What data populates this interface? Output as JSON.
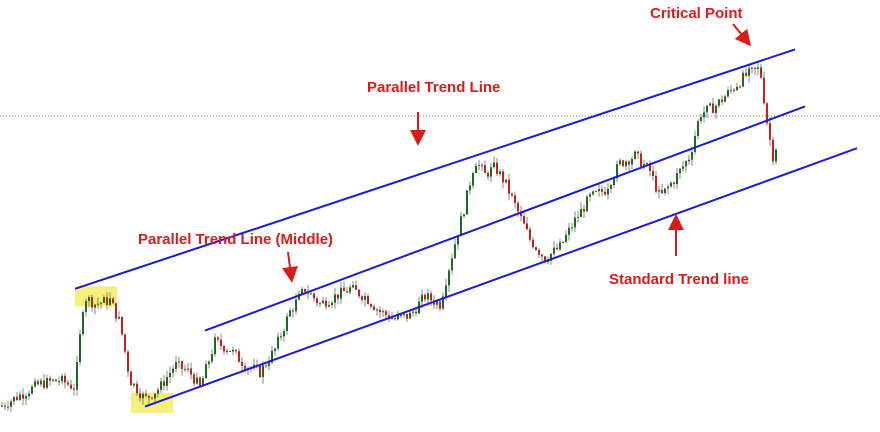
{
  "colors": {
    "trend_line": "#1a1adc",
    "annotation": "#dd1a1a",
    "candle_up": "#1d6b1d",
    "candle_down": "#c81e1e",
    "highlight": "#f5f07a",
    "price_line": "#777777"
  },
  "annotations": {
    "critical_point": "Critical Point",
    "parallel_trend_line": "Parallel Trend Line",
    "parallel_trend_line_middle": "Parallel Trend Line (Middle)",
    "standard_trend_line": "Standard Trend line"
  },
  "chart_data": {
    "type": "candlestick",
    "title": "",
    "xlabel": "",
    "ylabel": "",
    "grid": false,
    "axes_visible": false,
    "current_price_line": true,
    "close_path_approx": [
      [
        0,
        0.03
      ],
      [
        20,
        0.06
      ],
      [
        40,
        0.09
      ],
      [
        60,
        0.1
      ],
      [
        75,
        0.08
      ],
      [
        84,
        0.32
      ],
      [
        95,
        0.3
      ],
      [
        110,
        0.31
      ],
      [
        120,
        0.25
      ],
      [
        130,
        0.1
      ],
      [
        145,
        0.05
      ],
      [
        160,
        0.08
      ],
      [
        175,
        0.14
      ],
      [
        190,
        0.12
      ],
      [
        200,
        0.08
      ],
      [
        215,
        0.2
      ],
      [
        230,
        0.18
      ],
      [
        245,
        0.14
      ],
      [
        260,
        0.12
      ],
      [
        275,
        0.18
      ],
      [
        290,
        0.28
      ],
      [
        305,
        0.34
      ],
      [
        320,
        0.3
      ],
      [
        335,
        0.32
      ],
      [
        350,
        0.34
      ],
      [
        365,
        0.32
      ],
      [
        380,
        0.28
      ],
      [
        395,
        0.26
      ],
      [
        410,
        0.27
      ],
      [
        425,
        0.32
      ],
      [
        440,
        0.3
      ],
      [
        455,
        0.46
      ],
      [
        465,
        0.56
      ],
      [
        475,
        0.68
      ],
      [
        485,
        0.64
      ],
      [
        495,
        0.66
      ],
      [
        505,
        0.62
      ],
      [
        515,
        0.56
      ],
      [
        530,
        0.47
      ],
      [
        545,
        0.42
      ],
      [
        560,
        0.45
      ],
      [
        575,
        0.52
      ],
      [
        590,
        0.58
      ],
      [
        605,
        0.6
      ],
      [
        620,
        0.67
      ],
      [
        635,
        0.69
      ],
      [
        650,
        0.65
      ],
      [
        660,
        0.58
      ],
      [
        675,
        0.63
      ],
      [
        690,
        0.69
      ],
      [
        700,
        0.8
      ],
      [
        715,
        0.82
      ],
      [
        730,
        0.86
      ],
      [
        745,
        0.9
      ],
      [
        760,
        0.92
      ],
      [
        768,
        0.76
      ],
      [
        773,
        0.69
      ],
      [
        778,
        0.73
      ]
    ],
    "trend_lines": [
      {
        "role": "parallel_upper",
        "from": [
          75,
          0.34
        ],
        "to": [
          795,
          0.97
        ]
      },
      {
        "role": "parallel_middle",
        "from": [
          205,
          0.23
        ],
        "to": [
          805,
          0.82
        ]
      },
      {
        "role": "standard_lower",
        "from": [
          145,
          0.03
        ],
        "to": [
          857,
          0.71
        ]
      }
    ],
    "highlighted_points": [
      {
        "x": 96,
        "y": 0.32,
        "label": ""
      },
      {
        "x": 152,
        "y": 0.04,
        "label": ""
      }
    ]
  }
}
